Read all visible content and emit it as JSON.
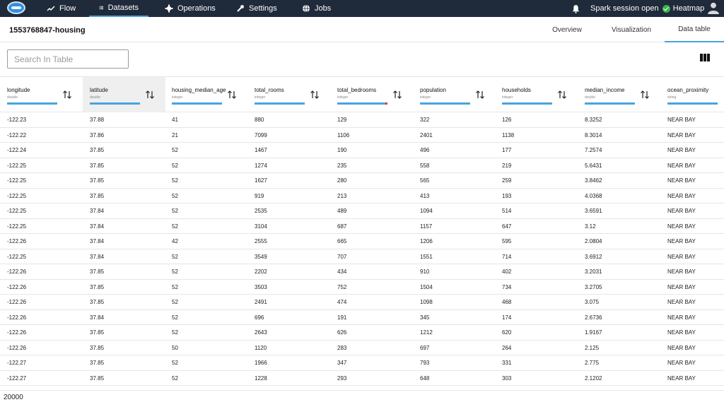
{
  "nav": {
    "items": [
      {
        "label": "Flow",
        "icon": "trending-up-icon"
      },
      {
        "label": "Datasets",
        "icon": "list-icon"
      },
      {
        "label": "Operations",
        "icon": "gear-icon"
      },
      {
        "label": "Settings",
        "icon": "wrench-icon"
      },
      {
        "label": "Jobs",
        "icon": "globe-icon"
      }
    ],
    "active": "Datasets",
    "session_status": "Spark session open",
    "heatmap_label": "Heatmap",
    "accent_color": "#4aa3df",
    "status_color": "#3cb34a"
  },
  "dataset": {
    "title": "1553768847-housing",
    "tabs": [
      "Overview",
      "Visualization",
      "Data table"
    ],
    "active_tab": "Data table"
  },
  "search": {
    "placeholder": "Search In Table",
    "value": ""
  },
  "table": {
    "columns": [
      {
        "name": "longitude",
        "type": "double"
      },
      {
        "name": "latitude",
        "type": "double"
      },
      {
        "name": "housing_median_age",
        "type": "integer"
      },
      {
        "name": "total_rooms",
        "type": "integer"
      },
      {
        "name": "total_bedrooms",
        "type": "integer"
      },
      {
        "name": "population",
        "type": "integer"
      },
      {
        "name": "households",
        "type": "integer"
      },
      {
        "name": "median_income",
        "type": "double"
      },
      {
        "name": "ocean_proximity",
        "type": "string"
      }
    ],
    "rows": [
      [
        "-122.23",
        "37.88",
        "41",
        "880",
        "129",
        "322",
        "126",
        "8.3252",
        "NEAR BAY"
      ],
      [
        "-122.22",
        "37.86",
        "21",
        "7099",
        "1106",
        "2401",
        "1138",
        "8.3014",
        "NEAR BAY"
      ],
      [
        "-122.24",
        "37.85",
        "52",
        "1467",
        "190",
        "496",
        "177",
        "7.2574",
        "NEAR BAY"
      ],
      [
        "-122.25",
        "37.85",
        "52",
        "1274",
        "235",
        "558",
        "219",
        "5.6431",
        "NEAR BAY"
      ],
      [
        "-122.25",
        "37.85",
        "52",
        "1627",
        "280",
        "565",
        "259",
        "3.8462",
        "NEAR BAY"
      ],
      [
        "-122.25",
        "37.85",
        "52",
        "919",
        "213",
        "413",
        "193",
        "4.0368",
        "NEAR BAY"
      ],
      [
        "-122.25",
        "37.84",
        "52",
        "2535",
        "489",
        "1094",
        "514",
        "3.6591",
        "NEAR BAY"
      ],
      [
        "-122.25",
        "37.84",
        "52",
        "3104",
        "687",
        "1157",
        "647",
        "3.12",
        "NEAR BAY"
      ],
      [
        "-122.26",
        "37.84",
        "42",
        "2555",
        "665",
        "1206",
        "595",
        "2.0804",
        "NEAR BAY"
      ],
      [
        "-122.25",
        "37.84",
        "52",
        "3549",
        "707",
        "1551",
        "714",
        "3.6912",
        "NEAR BAY"
      ],
      [
        "-122.26",
        "37.85",
        "52",
        "2202",
        "434",
        "910",
        "402",
        "3.2031",
        "NEAR BAY"
      ],
      [
        "-122.26",
        "37.85",
        "52",
        "3503",
        "752",
        "1504",
        "734",
        "3.2705",
        "NEAR BAY"
      ],
      [
        "-122.26",
        "37.85",
        "52",
        "2491",
        "474",
        "1098",
        "468",
        "3.075",
        "NEAR BAY"
      ],
      [
        "-122.26",
        "37.84",
        "52",
        "696",
        "191",
        "345",
        "174",
        "2.6736",
        "NEAR BAY"
      ],
      [
        "-122.26",
        "37.85",
        "52",
        "2643",
        "626",
        "1212",
        "620",
        "1.9167",
        "NEAR BAY"
      ],
      [
        "-122.26",
        "37.85",
        "50",
        "1120",
        "283",
        "697",
        "264",
        "2.125",
        "NEAR BAY"
      ],
      [
        "-122.27",
        "37.85",
        "52",
        "1966",
        "347",
        "793",
        "331",
        "2.775",
        "NEAR BAY"
      ],
      [
        "-122.27",
        "37.85",
        "52",
        "1228",
        "293",
        "648",
        "303",
        "2.1202",
        "NEAR BAY"
      ]
    ],
    "row_count": "20000"
  }
}
